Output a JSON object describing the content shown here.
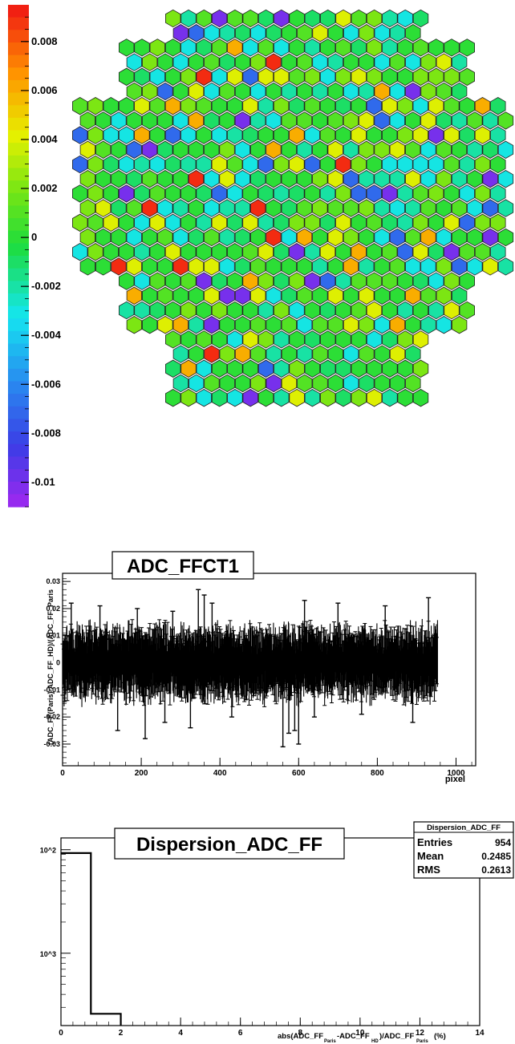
{
  "chart_data": [
    {
      "type": "heatmap",
      "title": "",
      "colorbar": {
        "ticks": [
          "0.008",
          "0.006",
          "0.004",
          "0.002",
          "0",
          "-0.002",
          "-0.004",
          "-0.006",
          "-0.008",
          "-0.01"
        ],
        "range": [
          -0.011,
          0.0095
        ]
      },
      "cells_description": "hexagonal camera pixel map, mostly green-cyan values near 0, sparse red/orange and blue/purple outliers",
      "highlight_values": {
        "red": 0.009,
        "orange": 0.006,
        "yellow": 0.004,
        "lime": 0.002,
        "green": 0.0,
        "cyan": -0.003,
        "blue": -0.007,
        "purple": -0.01
      }
    },
    {
      "type": "scatter",
      "title": "ADC_FFCT1",
      "xlabel": "pixel",
      "ylabel": "(ADC_FF(Paris)-ADC_FF_HD)/(ADC_FF_Paris",
      "xlim": [
        0,
        1050
      ],
      "ylim": [
        -0.038,
        0.033
      ],
      "xticks": [
        "0",
        "200",
        "400",
        "600",
        "800",
        "1000"
      ],
      "yticks": [
        "0.03",
        "0.02",
        "0.01",
        "0",
        "-0.01",
        "-0.02",
        "-0.03"
      ],
      "n_points": 954,
      "band": {
        "center": 0.0,
        "core_half_width": 0.012
      },
      "outliers": [
        {
          "x": 22,
          "y": 0.022
        },
        {
          "x": 95,
          "y": 0.021
        },
        {
          "x": 140,
          "y": -0.025
        },
        {
          "x": 190,
          "y": 0.02
        },
        {
          "x": 210,
          "y": -0.028
        },
        {
          "x": 260,
          "y": -0.022
        },
        {
          "x": 280,
          "y": 0.019
        },
        {
          "x": 325,
          "y": -0.024
        },
        {
          "x": 345,
          "y": 0.027
        },
        {
          "x": 360,
          "y": 0.025
        },
        {
          "x": 380,
          "y": 0.022
        },
        {
          "x": 430,
          "y": -0.02
        },
        {
          "x": 560,
          "y": -0.031
        },
        {
          "x": 575,
          "y": -0.026
        },
        {
          "x": 590,
          "y": -0.025
        },
        {
          "x": 600,
          "y": -0.03
        },
        {
          "x": 615,
          "y": 0.023
        },
        {
          "x": 640,
          "y": -0.02
        },
        {
          "x": 700,
          "y": 0.022
        },
        {
          "x": 760,
          "y": -0.019
        },
        {
          "x": 820,
          "y": 0.021
        },
        {
          "x": 890,
          "y": -0.022
        },
        {
          "x": 930,
          "y": 0.024
        }
      ]
    },
    {
      "type": "bar",
      "title": "Dispersion_ADC_FF",
      "xlabel": "abs(ADC_FF_Paris-ADC_FF_HD)/ADC_FF_Paris (%)",
      "ylabel": "",
      "yscale": "log",
      "xlim": [
        0,
        14
      ],
      "ylim": [
        20,
        1300
      ],
      "xticks": [
        "0",
        "2",
        "4",
        "6",
        "8",
        "10",
        "12",
        "14"
      ],
      "yticks": [
        "10^3",
        "10^2"
      ],
      "bins": [
        {
          "lo": 0,
          "hi": 1,
          "value": 928
        },
        {
          "lo": 1,
          "hi": 2,
          "value": 26
        }
      ],
      "stats": {
        "name": "Dispersion_ADC_FF",
        "rows": [
          {
            "label": "Entries",
            "value": "954"
          },
          {
            "label": "Mean",
            "value": "0.2485"
          },
          {
            "label": "RMS",
            "value": "0.2613"
          }
        ]
      }
    }
  ]
}
